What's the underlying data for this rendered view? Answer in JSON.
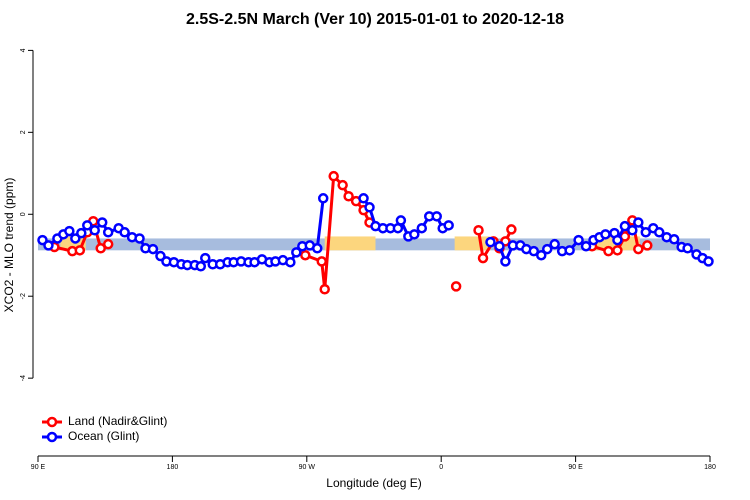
{
  "chart_data": {
    "type": "line",
    "title": "2.5S-2.5N March (Ver 10)   2015-01-01 to 2020-12-18",
    "x_label": "Longitude (deg E)",
    "y_label": "XCO2 - MLO trend (ppm)",
    "xlim": [
      90,
      540
    ],
    "ylim": [
      -5.9,
      4.4
    ],
    "xticks": [
      {
        "value": 90,
        "label": "90 E"
      },
      180,
      {
        "value": 270,
        "label": "90 W"
      },
      {
        "value": 360,
        "label": "0"
      },
      {
        "value": 450,
        "label": "90 E"
      },
      {
        "value": 540,
        "label": "180"
      }
    ],
    "yticks": [
      -4,
      -2,
      0,
      2,
      4
    ],
    "legend": "bottom-left",
    "background_band": {
      "ylim": [
        -0.88,
        -0.59
      ],
      "color": "#a7bcde"
    },
    "land_regions": {
      "xranges": [
        [
          105,
          122
        ],
        [
          282,
          316
        ],
        [
          369,
          393
        ],
        [
          460,
          493
        ]
      ],
      "color": "#fcd67e"
    },
    "series": [
      {
        "name": "Land (Nadir&Glint)",
        "color": "#ff0000",
        "x": [
          101,
          113,
          118,
          123,
          127,
          132,
          137,
          null,
          269,
          280,
          282,
          288,
          294,
          298,
          303,
          308,
          312,
          null,
          370,
          null,
          385,
          388,
          395,
          399,
          403,
          407,
          null,
          461,
          472,
          478,
          483,
          488,
          492,
          498
        ],
        "values": [
          -0.8,
          -0.9,
          -0.88,
          -0.44,
          -0.17,
          -0.83,
          -0.73,
          null,
          -1.0,
          -1.15,
          -1.83,
          0.93,
          0.71,
          0.44,
          0.32,
          0.1,
          -0.2,
          null,
          -1.76,
          null,
          -0.39,
          -1.07,
          -0.66,
          -0.83,
          -0.66,
          -0.37,
          null,
          -0.78,
          -0.9,
          -0.88,
          -0.54,
          -0.15,
          -0.85,
          -0.76
        ]
      },
      {
        "name": "Ocean (Glint)",
        "color": "#0000ff",
        "x": [
          93,
          97,
          103,
          107,
          111,
          115,
          119,
          123,
          128,
          133,
          137,
          144,
          148,
          153,
          158,
          162,
          167,
          172,
          176,
          181,
          186,
          190,
          195,
          199,
          202,
          207,
          212,
          217,
          221,
          226,
          231,
          235,
          240,
          245,
          249,
          254,
          259,
          263,
          267,
          272,
          277,
          281,
          null,
          308,
          312,
          316,
          321,
          326,
          331,
          333,
          338,
          342,
          347,
          352,
          357,
          361,
          365,
          null,
          393,
          399,
          403,
          408,
          413,
          417,
          422,
          427,
          431,
          436,
          441,
          446,
          452,
          457,
          462,
          466,
          470,
          476,
          478,
          483,
          488,
          492,
          497,
          502,
          506,
          511,
          516,
          521,
          525,
          531,
          535,
          539
        ],
        "values": [
          -0.63,
          -0.76,
          -0.59,
          -0.49,
          -0.41,
          -0.59,
          -0.46,
          -0.27,
          -0.39,
          -0.2,
          -0.44,
          -0.34,
          -0.44,
          -0.56,
          -0.59,
          -0.83,
          -0.85,
          -1.02,
          -1.15,
          -1.17,
          -1.22,
          -1.24,
          -1.24,
          -1.27,
          -1.07,
          -1.22,
          -1.22,
          -1.17,
          -1.17,
          -1.15,
          -1.17,
          -1.17,
          -1.1,
          -1.17,
          -1.15,
          -1.12,
          -1.17,
          -0.93,
          -0.78,
          -0.76,
          -0.83,
          0.39,
          null,
          0.39,
          0.17,
          -0.29,
          -0.34,
          -0.34,
          -0.34,
          -0.15,
          -0.54,
          -0.49,
          -0.34,
          -0.05,
          -0.05,
          -0.34,
          -0.27,
          null,
          -0.68,
          -0.78,
          -1.15,
          -0.76,
          -0.76,
          -0.85,
          -0.9,
          -1.0,
          -0.85,
          -0.73,
          -0.9,
          -0.88,
          -0.63,
          -0.78,
          -0.63,
          -0.56,
          -0.49,
          -0.46,
          -0.63,
          -0.29,
          -0.39,
          -0.2,
          -0.44,
          -0.34,
          -0.44,
          -0.56,
          -0.61,
          -0.8,
          -0.83,
          -0.98,
          -1.07,
          -1.15
        ]
      }
    ]
  }
}
